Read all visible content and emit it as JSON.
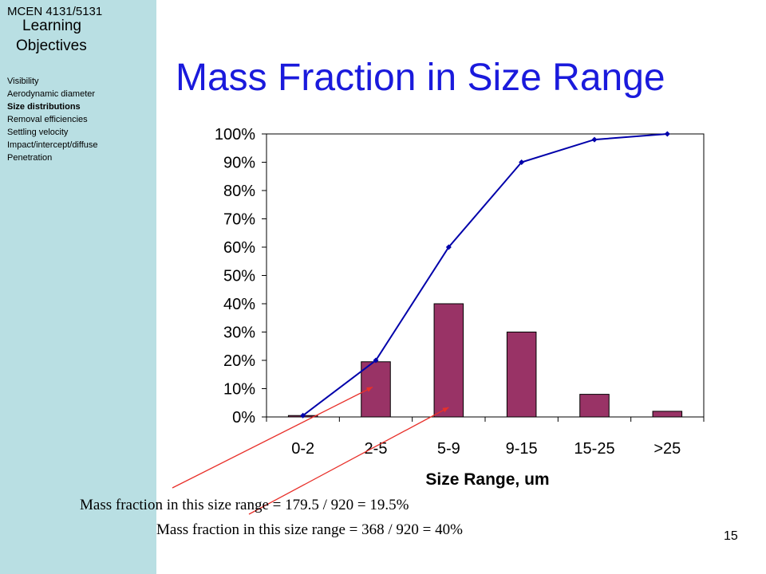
{
  "sidebar": {
    "course": "MCEN 4131/5131",
    "objectives_line1": "Learning",
    "objectives_line2": "Objectives",
    "topics": [
      {
        "label": "Visibility",
        "active": false
      },
      {
        "label": "Aerodynamic diameter",
        "active": false
      },
      {
        "label": "Size distributions",
        "active": true
      },
      {
        "label": "Removal efficiencies",
        "active": false
      },
      {
        "label": "Settling velocity",
        "active": false
      },
      {
        "label": "Impact/intercept/diffuse",
        "active": false
      },
      {
        "label": "Penetration",
        "active": false
      }
    ]
  },
  "slide": {
    "title": "Mass Fraction in Size Range",
    "note1": "Mass fraction in this size range = 179.5 / 920 = 19.5%",
    "note2": "Mass fraction in this size range = 368 / 920 = 40%",
    "page_number": "15"
  },
  "chart_data": {
    "type": "bar",
    "title": "",
    "xlabel": "Size Range, um",
    "ylabel": "",
    "categories": [
      "0-2",
      "2-5",
      "5-9",
      "9-15",
      "15-25",
      ">25"
    ],
    "yticks": [
      "0%",
      "10%",
      "20%",
      "30%",
      "40%",
      "50%",
      "60%",
      "70%",
      "80%",
      "90%",
      "100%"
    ],
    "ylim": [
      0,
      100
    ],
    "series": [
      {
        "type": "bar",
        "values": [
          0.5,
          19.5,
          40,
          30,
          8,
          2
        ],
        "color": "#993366"
      },
      {
        "type": "line",
        "values": [
          0.5,
          20,
          60,
          90,
          98,
          100
        ],
        "color": "#0000aa"
      }
    ],
    "grid": false,
    "legend": "none",
    "annotation_color": "#e8302a"
  }
}
